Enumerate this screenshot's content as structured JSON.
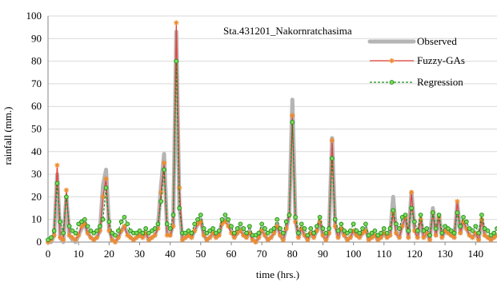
{
  "chart_data": {
    "type": "line",
    "annotation": "Sta.431201_Nakornratchasima",
    "xlabel": "time (hrs.)",
    "ylabel": "rainfall (mm.)",
    "xlim": [
      0,
      147
    ],
    "ylim": [
      0,
      100
    ],
    "xticks": [
      0,
      10,
      20,
      30,
      40,
      50,
      60,
      70,
      80,
      90,
      100,
      110,
      120,
      130,
      140
    ],
    "yticks": [
      0,
      10,
      20,
      30,
      40,
      50,
      60,
      70,
      80,
      90,
      100
    ],
    "legend_position": "top-right",
    "series": [
      {
        "name": "Observed",
        "color": "#b5b5b5",
        "style": "thick-line",
        "x": [
          0,
          1,
          2,
          3,
          4,
          5,
          6,
          7,
          8,
          9,
          10,
          11,
          12,
          13,
          14,
          15,
          16,
          17,
          18,
          19,
          20,
          21,
          22,
          23,
          24,
          25,
          26,
          27,
          28,
          29,
          30,
          31,
          32,
          33,
          34,
          35,
          36,
          37,
          38,
          39,
          40,
          41,
          42,
          43,
          44,
          45,
          46,
          47,
          48,
          49,
          50,
          51,
          52,
          53,
          54,
          55,
          56,
          57,
          58,
          59,
          60,
          61,
          62,
          63,
          64,
          65,
          66,
          67,
          68,
          69,
          70,
          71,
          72,
          73,
          74,
          75,
          76,
          77,
          78,
          79,
          80,
          81,
          82,
          83,
          84,
          85,
          86,
          87,
          88,
          89,
          90,
          91,
          92,
          93,
          94,
          95,
          96,
          97,
          98,
          99,
          100,
          101,
          102,
          103,
          104,
          105,
          106,
          107,
          108,
          109,
          110,
          111,
          112,
          113,
          114,
          115,
          116,
          117,
          118,
          119,
          120,
          121,
          122,
          123,
          124,
          125,
          126,
          127,
          128,
          129,
          130,
          131,
          132,
          133,
          134,
          135,
          136,
          137,
          138,
          139,
          140,
          141,
          142,
          143,
          144,
          145,
          146,
          147
        ],
        "y": [
          0,
          0,
          3,
          30,
          2,
          0,
          20,
          3,
          1,
          0,
          3,
          6,
          8,
          4,
          2,
          1,
          2,
          5,
          25,
          32,
          6,
          1,
          0,
          2,
          5,
          7,
          4,
          2,
          1,
          2,
          3,
          2,
          4,
          1,
          2,
          3,
          7,
          25,
          39,
          4,
          3,
          8,
          93,
          16,
          1,
          2,
          3,
          2,
          5,
          8,
          10,
          3,
          1,
          2,
          4,
          2,
          3,
          9,
          10,
          8,
          5,
          2,
          4,
          6,
          3,
          2,
          5,
          1,
          0,
          2,
          6,
          3,
          1,
          2,
          4,
          8,
          3,
          1,
          6,
          12,
          63,
          10,
          2,
          6,
          3,
          1,
          4,
          2,
          5,
          9,
          3,
          1,
          4,
          46,
          8,
          2,
          6,
          3,
          1,
          2,
          5,
          3,
          2,
          4,
          6,
          1,
          2,
          3,
          1,
          2,
          4,
          2,
          3,
          20,
          4,
          2,
          8,
          11,
          2,
          22,
          6,
          2,
          10,
          2,
          4,
          1,
          15,
          3,
          12,
          2,
          5,
          4,
          3,
          2,
          17,
          4,
          9,
          6,
          3,
          2,
          4,
          1,
          10,
          3,
          2,
          1,
          2,
          3
        ]
      },
      {
        "name": "Fuzzy-GAs",
        "color": "#e8413a",
        "marker_color": "#f08a2c",
        "style": "line-star",
        "x": [
          0,
          1,
          2,
          3,
          4,
          5,
          6,
          7,
          8,
          9,
          10,
          11,
          12,
          13,
          14,
          15,
          16,
          17,
          18,
          19,
          20,
          21,
          22,
          23,
          24,
          25,
          26,
          27,
          28,
          29,
          30,
          31,
          32,
          33,
          34,
          35,
          36,
          37,
          38,
          39,
          40,
          41,
          42,
          43,
          44,
          45,
          46,
          47,
          48,
          49,
          50,
          51,
          52,
          53,
          54,
          55,
          56,
          57,
          58,
          59,
          60,
          61,
          62,
          63,
          64,
          65,
          66,
          67,
          68,
          69,
          70,
          71,
          72,
          73,
          74,
          75,
          76,
          77,
          78,
          79,
          80,
          81,
          82,
          83,
          84,
          85,
          86,
          87,
          88,
          89,
          90,
          91,
          92,
          93,
          94,
          95,
          96,
          97,
          98,
          99,
          100,
          101,
          102,
          103,
          104,
          105,
          106,
          107,
          108,
          109,
          110,
          111,
          112,
          113,
          114,
          115,
          116,
          117,
          118,
          119,
          120,
          121,
          122,
          123,
          124,
          125,
          126,
          127,
          128,
          129,
          130,
          131,
          132,
          133,
          134,
          135,
          136,
          137,
          138,
          139,
          140,
          141,
          142,
          143,
          144,
          145,
          146,
          147
        ],
        "y": [
          0,
          1,
          3,
          34,
          2,
          1,
          23,
          3,
          2,
          1,
          3,
          7,
          8,
          4,
          2,
          1,
          2,
          5,
          20,
          28,
          5,
          1,
          0,
          2,
          5,
          7,
          3,
          2,
          1,
          2,
          3,
          2,
          4,
          1,
          2,
          3,
          6,
          22,
          35,
          3,
          3,
          7,
          97,
          24,
          1,
          2,
          3,
          2,
          5,
          8,
          9,
          3,
          1,
          2,
          4,
          2,
          3,
          8,
          9,
          7,
          4,
          2,
          4,
          5,
          3,
          2,
          4,
          1,
          0,
          2,
          5,
          3,
          1,
          2,
          4,
          7,
          3,
          1,
          6,
          12,
          56,
          9,
          2,
          6,
          3,
          1,
          4,
          2,
          5,
          9,
          3,
          1,
          4,
          45,
          7,
          2,
          6,
          3,
          1,
          2,
          5,
          3,
          2,
          4,
          5,
          1,
          2,
          3,
          1,
          2,
          4,
          2,
          3,
          13,
          4,
          2,
          7,
          11,
          2,
          22,
          5,
          2,
          10,
          2,
          4,
          1,
          13,
          3,
          11,
          2,
          5,
          4,
          3,
          2,
          18,
          4,
          9,
          6,
          3,
          2,
          4,
          1,
          10,
          3,
          2,
          1,
          2,
          3
        ]
      },
      {
        "name": "Regression",
        "color": "#1b8a1b",
        "marker_color": "#7ed957",
        "style": "dashed-circle",
        "x": [
          0,
          1,
          2,
          3,
          4,
          5,
          6,
          7,
          8,
          9,
          10,
          11,
          12,
          13,
          14,
          15,
          16,
          17,
          18,
          19,
          20,
          21,
          22,
          23,
          24,
          25,
          26,
          27,
          28,
          29,
          30,
          31,
          32,
          33,
          34,
          35,
          36,
          37,
          38,
          39,
          40,
          41,
          42,
          43,
          44,
          45,
          46,
          47,
          48,
          49,
          50,
          51,
          52,
          53,
          54,
          55,
          56,
          57,
          58,
          59,
          60,
          61,
          62,
          63,
          64,
          65,
          66,
          67,
          68,
          69,
          70,
          71,
          72,
          73,
          74,
          75,
          76,
          77,
          78,
          79,
          80,
          81,
          82,
          83,
          84,
          85,
          86,
          87,
          88,
          89,
          90,
          91,
          92,
          93,
          94,
          95,
          96,
          97,
          98,
          99,
          100,
          101,
          102,
          103,
          104,
          105,
          106,
          107,
          108,
          109,
          110,
          111,
          112,
          113,
          114,
          115,
          116,
          117,
          118,
          119,
          120,
          121,
          122,
          123,
          124,
          125,
          126,
          127,
          128,
          129,
          130,
          131,
          132,
          133,
          134,
          135,
          136,
          137,
          138,
          139,
          140,
          141,
          142,
          143,
          144,
          145,
          146,
          147
        ],
        "y": [
          1,
          2,
          5,
          26,
          9,
          4,
          20,
          7,
          5,
          4,
          8,
          9,
          10,
          7,
          5,
          4,
          5,
          7,
          10,
          24,
          9,
          4,
          3,
          5,
          9,
          11,
          8,
          5,
          4,
          4,
          5,
          4,
          6,
          4,
          5,
          6,
          8,
          18,
          32,
          8,
          6,
          12,
          80,
          15,
          4,
          4,
          5,
          4,
          8,
          10,
          12,
          6,
          4,
          5,
          6,
          4,
          5,
          10,
          12,
          10,
          7,
          4,
          6,
          8,
          6,
          4,
          7,
          3,
          3,
          4,
          8,
          6,
          4,
          5,
          6,
          10,
          6,
          4,
          9,
          12,
          53,
          11,
          4,
          8,
          6,
          3,
          6,
          4,
          7,
          11,
          6,
          4,
          6,
          37,
          10,
          5,
          8,
          5,
          4,
          5,
          8,
          5,
          4,
          6,
          8,
          3,
          4,
          5,
          3,
          4,
          6,
          4,
          6,
          14,
          8,
          6,
          11,
          12,
          5,
          15,
          9,
          5,
          12,
          5,
          6,
          3,
          13,
          6,
          12,
          4,
          7,
          6,
          5,
          4,
          13,
          7,
          11,
          9,
          6,
          5,
          7,
          4,
          12,
          6,
          5,
          3,
          4,
          6
        ]
      }
    ]
  }
}
